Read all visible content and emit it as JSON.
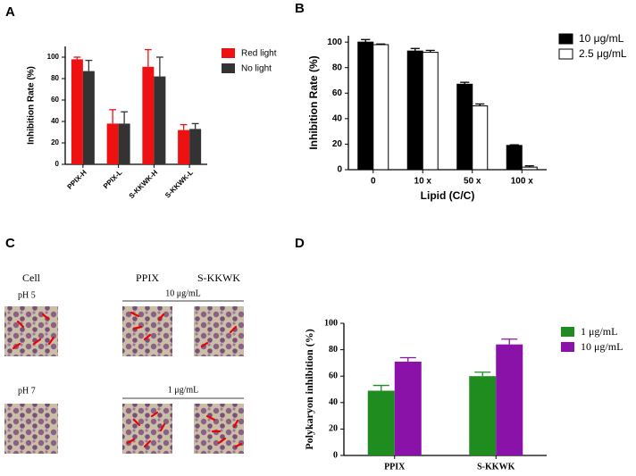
{
  "chart_data": [
    {
      "type": "bar",
      "panel": "A",
      "y_label": "Inhibition Rate (%)",
      "categories": [
        "PPIX-H",
        "PPIX-L",
        "S-KKWK-H",
        "S-KKWK-L"
      ],
      "series": [
        {
          "name": "Red light",
          "color": "#ee1111",
          "values": [
            98,
            38,
            91,
            32
          ],
          "errors": [
            2,
            13,
            16,
            5
          ]
        },
        {
          "name": "No light",
          "color": "#333333",
          "values": [
            87,
            38,
            82,
            33
          ],
          "errors": [
            10,
            11,
            18,
            5
          ]
        }
      ],
      "ylim": [
        0,
        110
      ],
      "yticks": [
        0,
        20,
        40,
        60,
        80,
        100
      ],
      "legend": "right"
    },
    {
      "type": "bar",
      "panel": "B",
      "y_label": "Inhibition Rate (%)",
      "x_label": "Lipid (C/C)",
      "categories": [
        "0",
        "10 x",
        "50 x",
        "100 x"
      ],
      "series": [
        {
          "name": "10 μg/mL",
          "color": "#000000",
          "values": [
            100,
            93,
            67,
            19
          ],
          "errors": [
            2,
            2,
            1.5,
            0.5
          ]
        },
        {
          "name": "2.5 μg/mL",
          "color": "#ffffff",
          "values": [
            98,
            92,
            50,
            2
          ],
          "errors": [
            0.5,
            1.5,
            1.5,
            1
          ]
        }
      ],
      "ylim": [
        0,
        105
      ],
      "yticks": [
        0,
        20,
        40,
        60,
        80,
        100
      ],
      "legend": "right"
    },
    {
      "type": "bar",
      "panel": "D",
      "y_label": "Polykaryon inhibition (%)",
      "categories": [
        "PPIX",
        "S-KKWK"
      ],
      "series": [
        {
          "name": "1 μg/mL",
          "color": "#1e8c1e",
          "values": [
            49,
            60
          ],
          "errors": [
            4,
            3
          ]
        },
        {
          "name": "10 μg/mL",
          "color": "#8a12a8",
          "values": [
            71,
            84
          ],
          "errors": [
            3,
            4
          ]
        }
      ],
      "ylim": [
        0,
        100
      ],
      "yticks": [
        0,
        20,
        40,
        60,
        80,
        100
      ],
      "legend": "right"
    }
  ],
  "micrographs": {
    "panel": "C",
    "columns": [
      "Cell",
      "PPIX",
      "S-KKWK"
    ],
    "rows": [
      {
        "label": "pH 5",
        "concentration": "10 μg/mL"
      },
      {
        "label": "pH 7",
        "concentration": "1 μg/mL"
      }
    ]
  }
}
